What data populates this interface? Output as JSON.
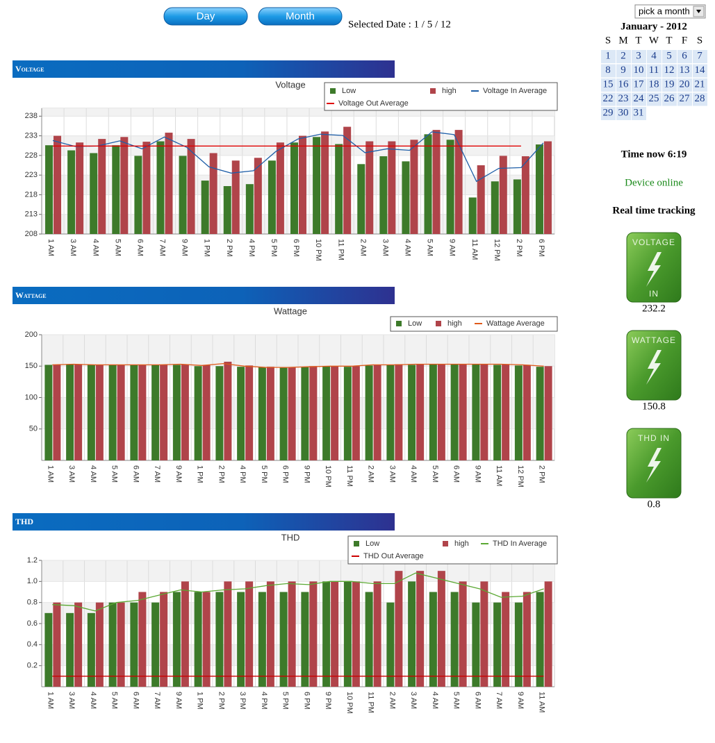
{
  "header": {
    "buttons": [
      "Day",
      "Month"
    ],
    "selected_date": "Selected Date : 1 / 5 / 12"
  },
  "month_picker": "pick a month",
  "calendar": {
    "title": "January - 2012",
    "weekdays": [
      "S",
      "M",
      "T",
      "W",
      "T",
      "F",
      "S"
    ],
    "days": [
      1,
      2,
      3,
      4,
      5,
      6,
      7,
      8,
      9,
      10,
      11,
      12,
      13,
      14,
      15,
      16,
      17,
      18,
      19,
      20,
      21,
      22,
      23,
      24,
      25,
      26,
      27,
      28,
      29,
      30,
      31
    ]
  },
  "status": {
    "time": "Time now 6:19",
    "device": "Device online",
    "tracking": "Real time tracking"
  },
  "gauges": [
    {
      "lines": [
        "VOLTAGE",
        "IN"
      ],
      "value": 232.2
    },
    {
      "lines": [
        "WATTAGE"
      ],
      "value": 150.8
    },
    {
      "lines": [
        "THD IN"
      ],
      "value": 0.8
    }
  ],
  "chart_data": [
    {
      "type": "bar",
      "section": "Voltage",
      "title": "Voltage",
      "categories": [
        "1 AM",
        "3 AM",
        "4 AM",
        "5 AM",
        "6 AM",
        "7 AM",
        "9 AM",
        "1 PM",
        "2 PM",
        "4 PM",
        "5 PM",
        "6 PM",
        "10 PM",
        "11 PM",
        "2 AM",
        "3 AM",
        "4 AM",
        "5 AM",
        "9 AM",
        "11 AM",
        "12 PM",
        "2 PM",
        "6 PM"
      ],
      "series": [
        {
          "name": "Low",
          "color": "#3d7a2a",
          "values": [
            230.6,
            229.3,
            228.6,
            230.6,
            227.9,
            231.6,
            227.9,
            221.6,
            220.2,
            220.7,
            226.7,
            231.3,
            232.7,
            230.9,
            225.8,
            227.8,
            226.5,
            233.4,
            232.0,
            217.3,
            221.4,
            221.9,
            230.8
          ]
        },
        {
          "name": "high",
          "color": "#b0444a",
          "values": [
            233.0,
            231.3,
            232.2,
            232.7,
            231.5,
            233.8,
            232.2,
            228.6,
            226.7,
            227.4,
            231.3,
            233.0,
            234.1,
            235.3,
            231.6,
            231.6,
            232.0,
            234.5,
            234.5,
            225.5,
            227.9,
            227.8,
            231.6
          ]
        },
        {
          "name": "Voltage In Average",
          "color": "#1f5fa8",
          "type": "line",
          "values": [
            231.8,
            230.3,
            230.4,
            231.7,
            229.7,
            232.7,
            230.1,
            225.1,
            223.5,
            224.1,
            229.0,
            232.2,
            233.4,
            233.1,
            228.7,
            229.7,
            229.3,
            234.0,
            233.3,
            221.4,
            224.7,
            224.9,
            231.2
          ]
        },
        {
          "name": "Voltage Out Average",
          "color": "#e00000",
          "type": "line",
          "values": [
            230.4,
            230.4,
            230.4,
            230.4,
            230.4,
            230.4,
            230.4,
            230.4,
            230.4,
            230.4,
            230.4,
            230.4,
            230.4,
            230.4,
            230.4,
            230.4,
            230.4,
            230.4,
            230.4,
            230.4,
            230.4,
            230.4,
            null
          ]
        }
      ],
      "ylim": [
        208,
        240
      ],
      "yticks": [
        208,
        213,
        218,
        223,
        228,
        233,
        238
      ],
      "grid": true
    },
    {
      "type": "bar",
      "section": "Wattage",
      "title": "Wattage",
      "categories": [
        "1 AM",
        "3 AM",
        "4 AM",
        "5 AM",
        "6 AM",
        "7 AM",
        "9 AM",
        "1 PM",
        "2 PM",
        "4 PM",
        "5 PM",
        "6 PM",
        "9 PM",
        "10 PM",
        "11 PM",
        "2 AM",
        "3 AM",
        "4 AM",
        "5 AM",
        "6 AM",
        "9 AM",
        "11 AM",
        "12 PM",
        "2 PM"
      ],
      "series": [
        {
          "name": "Low",
          "color": "#3d7a2a",
          "values": [
            152,
            153,
            152,
            152,
            152,
            152,
            152,
            150,
            150,
            149,
            148,
            148,
            149,
            150,
            149,
            151,
            152,
            152,
            153,
            153,
            153,
            152,
            151,
            149
          ]
        },
        {
          "name": "high",
          "color": "#b0444a",
          "values": [
            152,
            153,
            152,
            152,
            152,
            152,
            153,
            152,
            157,
            151,
            149,
            148,
            150,
            150,
            150,
            152,
            153,
            153,
            153,
            153,
            153,
            153,
            152,
            150
          ]
        },
        {
          "name": "Wattage Average",
          "color": "#e05a1a",
          "type": "line",
          "values": [
            152,
            153,
            152,
            152,
            152,
            152,
            153,
            151,
            154,
            150,
            148,
            148,
            149,
            150,
            150,
            152,
            152,
            153,
            153,
            153,
            153,
            153,
            152,
            150
          ]
        }
      ],
      "ylim": [
        0,
        200
      ],
      "yticks": [
        50,
        100,
        150,
        200
      ],
      "grid": true
    },
    {
      "type": "bar",
      "section": "THD",
      "title": "THD",
      "categories": [
        "1 AM",
        "3 AM",
        "4 AM",
        "5 AM",
        "6 AM",
        "7 AM",
        "9 AM",
        "1 PM",
        "2 PM",
        "3 PM",
        "4 PM",
        "5 PM",
        "6 PM",
        "9 PM",
        "10 PM",
        "11 PM",
        "2 AM",
        "3 AM",
        "4 AM",
        "5 AM",
        "6 AM",
        "7 AM",
        "9 AM",
        "11 AM"
      ],
      "series": [
        {
          "name": "Low",
          "color": "#3d7a2a",
          "values": [
            0.7,
            0.7,
            0.7,
            0.8,
            0.8,
            0.8,
            0.9,
            0.9,
            0.9,
            0.9,
            0.9,
            0.9,
            0.9,
            1.0,
            1.0,
            0.9,
            0.8,
            1.0,
            0.9,
            0.9,
            0.8,
            0.8,
            0.8,
            0.9
          ]
        },
        {
          "name": "high",
          "color": "#b0444a",
          "values": [
            0.8,
            0.8,
            0.8,
            0.8,
            0.9,
            0.9,
            1.0,
            0.9,
            1.0,
            1.0,
            1.0,
            1.0,
            1.0,
            1.0,
            1.0,
            1.0,
            1.1,
            1.1,
            1.1,
            1.0,
            1.0,
            0.9,
            0.9,
            1.0
          ]
        },
        {
          "name": "THD In Average",
          "color": "#5aa832",
          "type": "line",
          "values": [
            0.78,
            0.77,
            0.72,
            0.8,
            0.82,
            0.87,
            0.92,
            0.9,
            0.92,
            0.93,
            0.96,
            0.98,
            0.97,
            1.0,
            1.0,
            0.98,
            0.98,
            1.08,
            1.03,
            0.98,
            0.93,
            0.85,
            0.86,
            0.93
          ]
        },
        {
          "name": "THD Out Average",
          "color": "#cc0000",
          "type": "line",
          "values": [
            0.1,
            0.1,
            0.1,
            0.1,
            0.1,
            0.1,
            0.1,
            0.1,
            0.1,
            0.1,
            0.1,
            0.1,
            0.1,
            0.1,
            0.1,
            0.1,
            0.1,
            0.1,
            0.1,
            0.1,
            0.1,
            0.1,
            0.1,
            0.1
          ]
        }
      ],
      "ylim": [
        0,
        1.2
      ],
      "yticks": [
        0.2,
        0.4,
        {
          "value": 0.6,
          "label": "0.6"
        },
        0.8,
        {
          "value": 1,
          "label": "1.0"
        },
        1.2
      ],
      "grid": true
    }
  ]
}
